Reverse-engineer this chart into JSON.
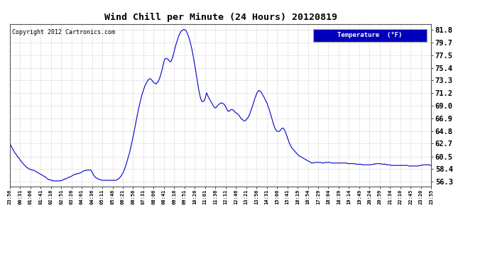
{
  "title": "Wind Chill per Minute (24 Hours) 20120819",
  "copyright": "Copyright 2012 Cartronics.com",
  "legend_label": "Temperature  (°F)",
  "line_color": "#0000cc",
  "legend_bg": "#0000bb",
  "legend_fg": "#ffffff",
  "bg_color": "#ffffff",
  "yticks": [
    56.3,
    58.4,
    60.5,
    62.7,
    64.8,
    66.9,
    69.0,
    71.2,
    73.3,
    75.4,
    77.5,
    79.7,
    81.8
  ],
  "ylim": [
    55.5,
    82.8
  ],
  "x_tick_labels": [
    "23:56",
    "00:31",
    "01:06",
    "01:41",
    "02:16",
    "02:51",
    "03:26",
    "04:01",
    "04:36",
    "05:11",
    "05:46",
    "06:21",
    "06:56",
    "07:31",
    "08:06",
    "08:41",
    "09:16",
    "09:51",
    "10:26",
    "11:01",
    "11:36",
    "12:11",
    "12:46",
    "13:21",
    "13:56",
    "14:31",
    "15:06",
    "15:41",
    "16:19",
    "16:54",
    "17:29",
    "18:04",
    "18:39",
    "19:14",
    "19:49",
    "20:24",
    "20:59",
    "21:34",
    "22:10",
    "22:45",
    "23:20",
    "23:55"
  ],
  "grid_color": "#bbbbbb",
  "data_points": [
    62.7,
    62.4,
    62.0,
    61.7,
    61.4,
    61.1,
    60.9,
    60.6,
    60.4,
    60.2,
    59.9,
    59.7,
    59.5,
    59.3,
    59.1,
    58.9,
    58.7,
    58.6,
    58.5,
    58.4,
    58.3,
    58.3,
    58.2,
    58.2,
    58.1,
    58.0,
    57.9,
    57.8,
    57.7,
    57.6,
    57.5,
    57.4,
    57.3,
    57.2,
    57.1,
    57.0,
    56.8,
    56.7,
    56.6,
    56.6,
    56.5,
    56.5,
    56.4,
    56.4,
    56.4,
    56.4,
    56.4,
    56.4,
    56.4,
    56.4,
    56.5,
    56.5,
    56.6,
    56.7,
    56.7,
    56.8,
    56.9,
    57.0,
    57.0,
    57.1,
    57.2,
    57.3,
    57.4,
    57.5,
    57.5,
    57.6,
    57.6,
    57.7,
    57.7,
    57.8,
    57.9,
    58.0,
    58.1,
    58.1,
    58.2,
    58.2,
    58.2,
    58.2,
    58.2,
    58.2,
    57.8,
    57.5,
    57.2,
    57.0,
    56.9,
    56.8,
    56.7,
    56.6,
    56.6,
    56.5,
    56.5,
    56.5,
    56.5,
    56.5,
    56.5,
    56.5,
    56.5,
    56.5,
    56.5,
    56.5,
    56.5,
    56.5,
    56.5,
    56.5,
    56.6,
    56.7,
    56.8,
    57.0,
    57.2,
    57.5,
    57.8,
    58.2,
    58.7,
    59.2,
    59.8,
    60.4,
    61.0,
    61.7,
    62.5,
    63.3,
    64.1,
    65.0,
    65.9,
    66.8,
    67.7,
    68.5,
    69.3,
    70.0,
    70.7,
    71.3,
    71.8,
    72.3,
    72.7,
    73.0,
    73.3,
    73.5,
    73.6,
    73.5,
    73.3,
    73.1,
    72.9,
    72.8,
    72.7,
    72.9,
    73.1,
    73.5,
    74.0,
    74.6,
    75.2,
    76.0,
    76.7,
    77.0,
    77.0,
    76.9,
    76.8,
    76.5,
    76.4,
    76.7,
    77.2,
    77.8,
    78.5,
    79.2,
    79.7,
    80.3,
    80.8,
    81.2,
    81.5,
    81.7,
    81.8,
    81.9,
    81.8,
    81.7,
    81.3,
    80.9,
    80.4,
    79.8,
    79.1,
    78.3,
    77.4,
    76.4,
    75.4,
    74.3,
    73.2,
    72.1,
    71.2,
    70.4,
    69.9,
    69.7,
    69.8,
    70.0,
    70.5,
    71.2,
    70.8,
    70.4,
    70.1,
    69.8,
    69.5,
    69.2,
    68.9,
    68.7,
    68.7,
    68.9,
    69.1,
    69.3,
    69.4,
    69.5,
    69.5,
    69.4,
    69.3,
    69.0,
    68.7,
    68.3,
    68.1,
    68.1,
    68.3,
    68.4,
    68.4,
    68.3,
    68.1,
    67.9,
    67.8,
    67.7,
    67.5,
    67.3,
    67.0,
    66.8,
    66.7,
    66.5,
    66.5,
    66.6,
    66.8,
    67.0,
    67.3,
    67.7,
    68.2,
    68.7,
    69.2,
    69.8,
    70.3,
    70.8,
    71.2,
    71.5,
    71.6,
    71.5,
    71.3,
    71.0,
    70.7,
    70.4,
    70.0,
    69.7,
    69.3,
    68.8,
    68.3,
    67.7,
    67.1,
    66.5,
    65.9,
    65.4,
    65.0,
    64.8,
    64.7,
    64.7,
    64.8,
    65.0,
    65.2,
    65.3,
    65.1,
    64.8,
    64.4,
    63.9,
    63.4,
    62.9,
    62.5,
    62.2,
    61.9,
    61.7,
    61.5,
    61.3,
    61.1,
    60.9,
    60.7,
    60.6,
    60.5,
    60.4,
    60.3,
    60.2,
    60.1,
    60.0,
    59.9,
    59.8,
    59.7,
    59.6,
    59.5,
    59.4,
    59.4,
    59.4,
    59.5,
    59.5,
    59.5,
    59.5,
    59.5,
    59.5,
    59.5,
    59.4,
    59.4,
    59.4,
    59.5,
    59.5,
    59.5,
    59.5,
    59.5,
    59.5,
    59.4,
    59.4,
    59.4,
    59.4,
    59.4,
    59.4,
    59.4,
    59.4,
    59.4,
    59.4,
    59.4,
    59.4,
    59.4,
    59.4,
    59.4,
    59.4,
    59.3,
    59.3,
    59.3,
    59.3,
    59.3,
    59.3,
    59.3,
    59.3,
    59.2,
    59.2,
    59.2,
    59.2,
    59.2,
    59.2,
    59.1,
    59.1,
    59.1,
    59.1,
    59.1,
    59.1,
    59.1,
    59.1,
    59.1,
    59.1,
    59.2,
    59.2,
    59.2,
    59.3,
    59.3,
    59.3,
    59.3,
    59.3,
    59.3,
    59.2,
    59.2,
    59.2,
    59.2,
    59.2,
    59.1,
    59.1,
    59.1,
    59.1,
    59.0,
    59.0,
    59.0,
    59.0,
    59.0,
    59.0,
    59.0,
    59.0,
    59.0,
    59.0,
    59.0,
    59.0,
    59.0,
    59.0,
    59.0,
    59.0,
    59.0,
    58.9,
    58.9,
    58.9,
    58.9,
    58.9,
    58.9,
    58.9,
    58.9,
    58.9,
    58.9,
    58.9,
    59.0,
    59.0,
    59.0,
    59.1,
    59.1,
    59.1,
    59.1,
    59.1,
    59.1,
    59.1,
    59.0,
    59.0
  ]
}
